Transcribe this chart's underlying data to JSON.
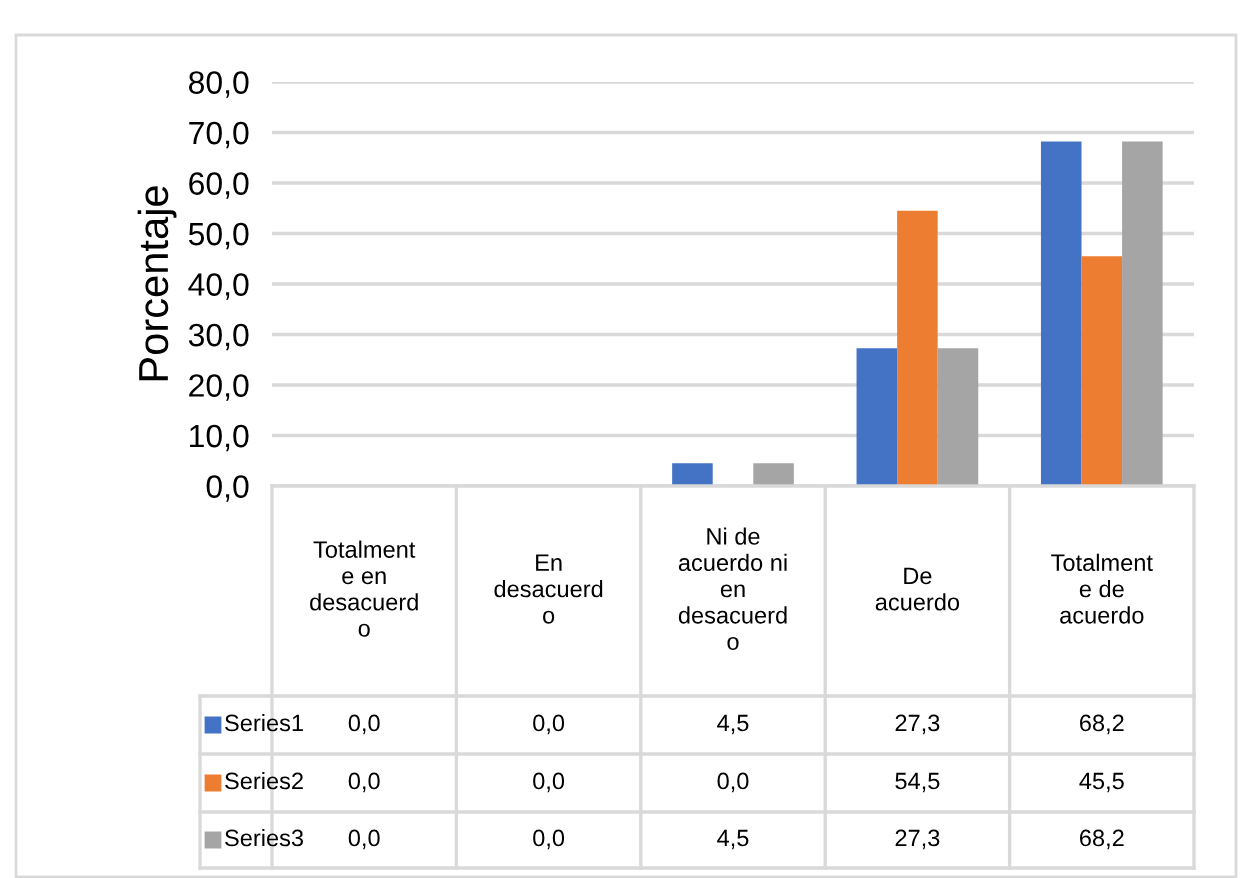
{
  "chart_data": {
    "type": "bar",
    "ylabel": "Porcentaje",
    "categories": [
      "Totalment\ne en\ndesacuerd\no",
      "En\ndesacuerd\no",
      "Ni de\nacuerdo ni\nen\ndesacuerd\no",
      "De\nacuerdo",
      "Totalment\ne de\nacuerdo"
    ],
    "series": [
      {
        "name": "Series1",
        "color": "#4472c4",
        "values": [
          0.0,
          0.0,
          4.5,
          27.3,
          68.2
        ],
        "value_labels": [
          "0,0",
          "0,0",
          "4,5",
          "27,3",
          "68,2"
        ]
      },
      {
        "name": "Series2",
        "color": "#ed7d31",
        "values": [
          0.0,
          0.0,
          0.0,
          54.5,
          45.5
        ],
        "value_labels": [
          "0,0",
          "0,0",
          "0,0",
          "54,5",
          "45,5"
        ]
      },
      {
        "name": "Series3",
        "color": "#a5a5a5",
        "values": [
          0.0,
          0.0,
          4.5,
          27.3,
          68.2
        ],
        "value_labels": [
          "0,0",
          "0,0",
          "4,5",
          "27,3",
          "68,2"
        ]
      }
    ],
    "ylim": [
      0,
      80
    ],
    "yticks": [
      {
        "value": 0,
        "label": "0,0"
      },
      {
        "value": 10,
        "label": "10,0"
      },
      {
        "value": 20,
        "label": "20,0"
      },
      {
        "value": 30,
        "label": "30,0"
      },
      {
        "value": 40,
        "label": "40,0"
      },
      {
        "value": 50,
        "label": "50,0"
      },
      {
        "value": 60,
        "label": "60,0"
      },
      {
        "value": 70,
        "label": "70,0"
      },
      {
        "value": 80,
        "label": "80,0"
      }
    ],
    "grid": "y",
    "legend": "bottom"
  }
}
